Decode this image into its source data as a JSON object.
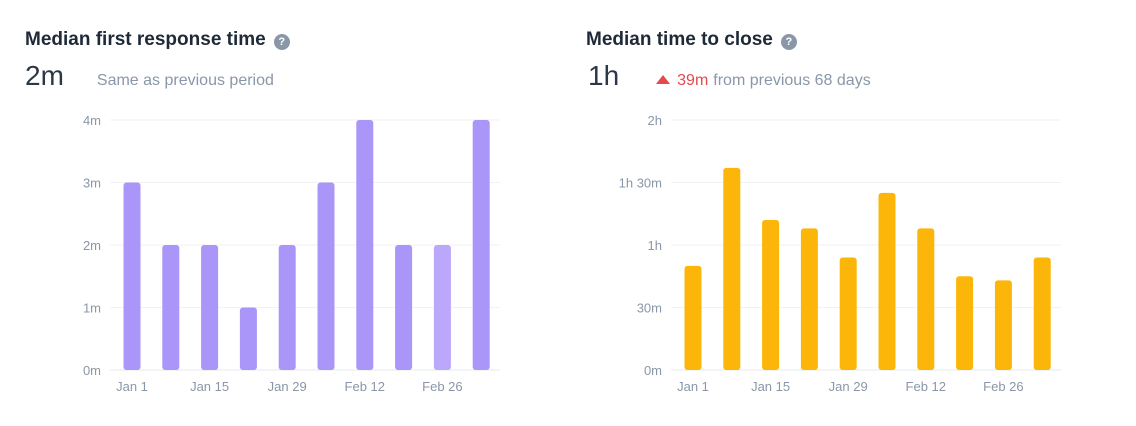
{
  "left_panel": {
    "title": "Median first response time",
    "value": "2m",
    "comparison": "Same as previous period"
  },
  "right_panel": {
    "title": "Median time to close",
    "value": "1h",
    "delta_value": "39m",
    "delta_text": "from previous 68 days"
  },
  "help_glyph": "?",
  "chart_data": [
    {
      "type": "bar",
      "title": "Median first response time",
      "unit": "minutes",
      "x_tick_labels": [
        "Jan 1",
        "Jan 15",
        "Jan 29",
        "Feb 12",
        "Feb 26"
      ],
      "y_ticks": [
        0,
        1,
        2,
        3,
        4
      ],
      "y_tick_labels": [
        "0m",
        "1m",
        "2m",
        "3m",
        "4m"
      ],
      "ylim": [
        0,
        4
      ],
      "values": [
        3,
        2,
        2,
        1,
        2,
        3,
        4,
        2,
        2,
        4
      ],
      "highlight_index": 8,
      "color": "#a996f8",
      "highlight_color": "#bba8fa",
      "grid": true
    },
    {
      "type": "bar",
      "title": "Median time to close",
      "unit": "minutes",
      "x_tick_labels": [
        "Jan 1",
        "Jan 15",
        "Jan 29",
        "Feb 12",
        "Feb 26"
      ],
      "y_ticks": [
        0,
        30,
        60,
        90,
        120
      ],
      "y_tick_labels": [
        "0m",
        "30m",
        "1h",
        "1h 30m",
        "2h"
      ],
      "ylim": [
        0,
        120
      ],
      "values": [
        50,
        97,
        72,
        68,
        54,
        85,
        68,
        45,
        43,
        54
      ],
      "color": "#fbb609",
      "grid": true
    }
  ]
}
